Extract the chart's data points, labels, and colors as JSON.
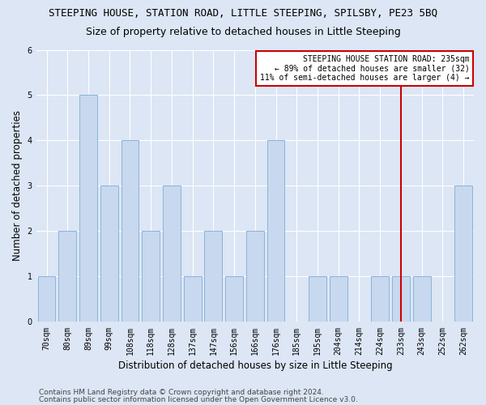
{
  "title": "STEEPING HOUSE, STATION ROAD, LITTLE STEEPING, SPILSBY, PE23 5BQ",
  "subtitle": "Size of property relative to detached houses in Little Steeping",
  "xlabel": "Distribution of detached houses by size in Little Steeping",
  "ylabel": "Number of detached properties",
  "categories": [
    "70sqm",
    "80sqm",
    "89sqm",
    "99sqm",
    "108sqm",
    "118sqm",
    "128sqm",
    "137sqm",
    "147sqm",
    "156sqm",
    "166sqm",
    "176sqm",
    "185sqm",
    "195sqm",
    "204sqm",
    "214sqm",
    "224sqm",
    "233sqm",
    "243sqm",
    "252sqm",
    "262sqm"
  ],
  "values": [
    1,
    2,
    5,
    3,
    4,
    2,
    3,
    1,
    2,
    1,
    2,
    4,
    0,
    1,
    1,
    0,
    1,
    1,
    1,
    0,
    3
  ],
  "bar_color": "#c8d8ee",
  "bar_edgecolor": "#8ab4d8",
  "vline_x_index": 17,
  "vline_color": "#cc0000",
  "annotation_text": "STEEPING HOUSE STATION ROAD: 235sqm\n← 89% of detached houses are smaller (32)\n11% of semi-detached houses are larger (4) →",
  "annotation_box_edgecolor": "#cc0000",
  "annotation_box_facecolor": "#ffffff",
  "ylim": [
    0,
    6
  ],
  "yticks": [
    0,
    1,
    2,
    3,
    4,
    5,
    6
  ],
  "background_color": "#dce6f5",
  "plot_background": "#dce6f5",
  "grid_color": "#ffffff",
  "footer_line1": "Contains HM Land Registry data © Crown copyright and database right 2024.",
  "footer_line2": "Contains public sector information licensed under the Open Government Licence v3.0.",
  "title_fontsize": 9,
  "subtitle_fontsize": 9,
  "xlabel_fontsize": 8.5,
  "ylabel_fontsize": 8.5,
  "tick_fontsize": 7,
  "annotation_fontsize": 7,
  "footer_fontsize": 6.5
}
